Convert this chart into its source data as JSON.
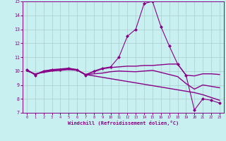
{
  "title": "",
  "xlabel": "Windchill (Refroidissement éolien,°C)",
  "ylabel": "",
  "bg_color": "#c8f0f0",
  "grid_color": "#aacccc",
  "line_color": "#880088",
  "xlim": [
    -0.5,
    23.5
  ],
  "ylim": [
    7,
    15
  ],
  "yticks": [
    7,
    8,
    9,
    10,
    11,
    12,
    13,
    14,
    15
  ],
  "xticks": [
    0,
    1,
    2,
    3,
    4,
    5,
    6,
    7,
    8,
    9,
    10,
    11,
    12,
    13,
    14,
    15,
    16,
    17,
    18,
    19,
    20,
    21,
    22,
    23
  ],
  "lines": [
    {
      "x": [
        0,
        1,
        2,
        3,
        4,
        5,
        6,
        7,
        8,
        9,
        10,
        11,
        12,
        13,
        14,
        15,
        16,
        17,
        18,
        19,
        20,
        21,
        22,
        23
      ],
      "y": [
        10.1,
        9.7,
        10.0,
        10.1,
        10.1,
        10.2,
        10.1,
        9.7,
        10.0,
        10.2,
        10.3,
        11.0,
        12.5,
        13.0,
        14.85,
        15.0,
        13.2,
        11.8,
        10.5,
        9.7,
        7.2,
        8.0,
        7.9,
        7.7
      ],
      "marker": "D",
      "markersize": 2.0,
      "lw": 0.8
    },
    {
      "x": [
        0,
        1,
        2,
        3,
        4,
        5,
        6,
        7,
        8,
        9,
        10,
        11,
        12,
        13,
        14,
        15,
        16,
        17,
        18,
        19,
        20,
        21,
        22,
        23
      ],
      "y": [
        10.1,
        9.75,
        10.0,
        10.1,
        10.15,
        10.2,
        10.1,
        9.75,
        9.95,
        10.15,
        10.25,
        10.3,
        10.35,
        10.35,
        10.4,
        10.4,
        10.45,
        10.5,
        10.5,
        9.7,
        9.65,
        9.8,
        9.8,
        9.75
      ],
      "marker": null,
      "lw": 1.0
    },
    {
      "x": [
        0,
        1,
        2,
        3,
        4,
        5,
        6,
        7,
        8,
        9,
        10,
        11,
        12,
        13,
        14,
        15,
        16,
        17,
        18,
        19,
        20,
        21,
        22,
        23
      ],
      "y": [
        10.0,
        9.8,
        9.9,
        10.0,
        10.05,
        10.1,
        10.05,
        9.75,
        9.65,
        9.55,
        9.45,
        9.35,
        9.25,
        9.15,
        9.05,
        8.95,
        8.85,
        8.75,
        8.65,
        8.55,
        8.45,
        8.3,
        8.1,
        7.9
      ],
      "marker": null,
      "lw": 1.0
    },
    {
      "x": [
        0,
        1,
        2,
        3,
        4,
        5,
        6,
        7,
        8,
        9,
        10,
        11,
        12,
        13,
        14,
        15,
        16,
        17,
        18,
        19,
        20,
        21,
        22,
        23
      ],
      "y": [
        10.05,
        9.77,
        9.95,
        10.05,
        10.1,
        10.15,
        10.07,
        9.75,
        9.8,
        9.85,
        9.95,
        10.0,
        9.97,
        9.95,
        10.0,
        10.05,
        9.9,
        9.75,
        9.6,
        9.1,
        8.7,
        9.0,
        8.9,
        8.8
      ],
      "marker": null,
      "lw": 1.0
    }
  ]
}
